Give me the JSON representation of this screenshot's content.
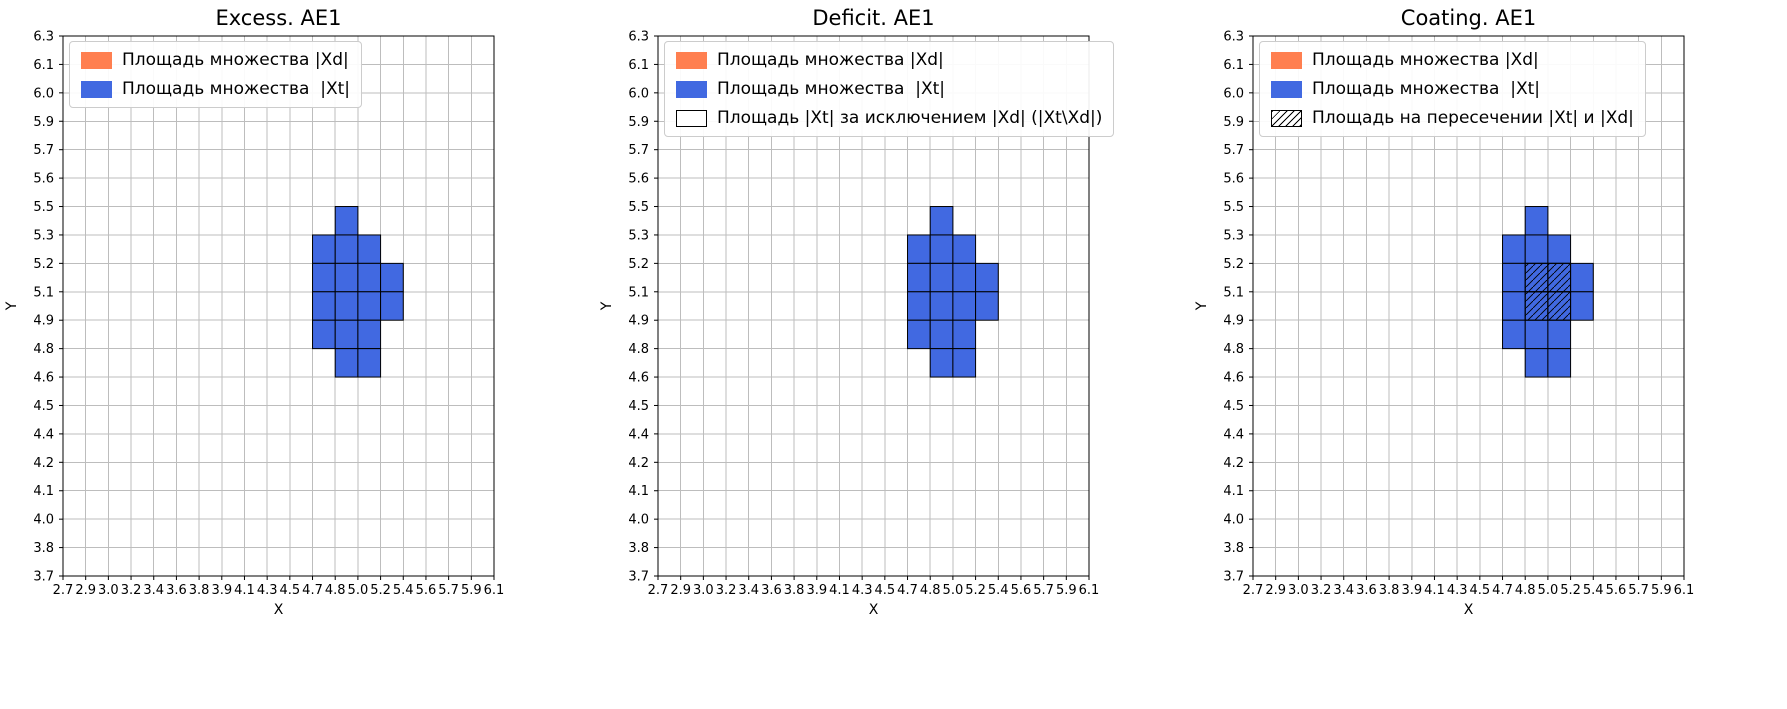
{
  "figure": {
    "background": "#ffffff"
  },
  "colors": {
    "xd_color": "#ff7f50",
    "xt_color": "#4169e1",
    "grid_color": "#bdbdbd",
    "spine_color": "#000000",
    "legend_border": "#cccccc",
    "hatch_color": "#000000"
  },
  "chart_data": [
    {
      "type": "heatmap",
      "title": "Excess. AE1",
      "xlabel": "X",
      "ylabel": "Y",
      "grid": true,
      "legend_position": "upper left",
      "x_ticks": [
        "2.7",
        "2.9",
        "3.0",
        "3.2",
        "3.4",
        "3.6",
        "3.8",
        "3.9",
        "4.1",
        "4.3",
        "4.5",
        "4.7",
        "4.8",
        "5.0",
        "5.2",
        "5.4",
        "5.6",
        "5.7",
        "5.9",
        "6.1"
      ],
      "y_ticks": [
        "3.7",
        "3.8",
        "4.0",
        "4.1",
        "4.2",
        "4.4",
        "4.5",
        "4.6",
        "4.8",
        "4.9",
        "5.1",
        "5.2",
        "5.3",
        "5.5",
        "5.6",
        "5.7",
        "5.9",
        "6.0",
        "6.1",
        "6.3"
      ],
      "legend": [
        {
          "label": "Площадь множества |Xd|",
          "swatch": "solid",
          "color": "#ff7f50"
        },
        {
          "label": "Площадь множества  |Xt|",
          "swatch": "solid",
          "color": "#4169e1"
        }
      ],
      "cell_fill": "#4169e1",
      "cells_encoding": "grid cell [column,row] indices into tick intervals, row 0 at bottom",
      "filled_cells": [
        [
          12,
          12
        ],
        [
          11,
          11
        ],
        [
          12,
          11
        ],
        [
          13,
          11
        ],
        [
          11,
          10
        ],
        [
          12,
          10
        ],
        [
          13,
          10
        ],
        [
          14,
          10
        ],
        [
          11,
          9
        ],
        [
          12,
          9
        ],
        [
          13,
          9
        ],
        [
          14,
          9
        ],
        [
          11,
          8
        ],
        [
          12,
          8
        ],
        [
          13,
          8
        ],
        [
          12,
          7
        ],
        [
          13,
          7
        ]
      ],
      "hatched_cells": []
    },
    {
      "type": "heatmap",
      "title": "Deficit. AE1",
      "xlabel": "X",
      "ylabel": "Y",
      "grid": true,
      "legend_position": "upper left",
      "x_ticks": [
        "2.7",
        "2.9",
        "3.0",
        "3.2",
        "3.4",
        "3.6",
        "3.8",
        "3.9",
        "4.1",
        "4.3",
        "4.5",
        "4.7",
        "4.8",
        "5.0",
        "5.2",
        "5.4",
        "5.6",
        "5.7",
        "5.9",
        "6.1"
      ],
      "y_ticks": [
        "3.7",
        "3.8",
        "4.0",
        "4.1",
        "4.2",
        "4.4",
        "4.5",
        "4.6",
        "4.8",
        "4.9",
        "5.1",
        "5.2",
        "5.3",
        "5.5",
        "5.6",
        "5.7",
        "5.9",
        "6.0",
        "6.1",
        "6.3"
      ],
      "legend": [
        {
          "label": "Площадь множества |Xd|",
          "swatch": "solid",
          "color": "#ff7f50"
        },
        {
          "label": "Площадь множества  |Xt|",
          "swatch": "solid",
          "color": "#4169e1"
        },
        {
          "label": "Площадь |Xt| за исключением |Xd| (|Xt\\Xd|)",
          "swatch": "outline",
          "color": "#ffffff"
        }
      ],
      "cell_fill": "#4169e1",
      "cells_encoding": "grid cell [column,row] indices into tick intervals, row 0 at bottom",
      "filled_cells": [
        [
          12,
          12
        ],
        [
          11,
          11
        ],
        [
          12,
          11
        ],
        [
          13,
          11
        ],
        [
          11,
          10
        ],
        [
          12,
          10
        ],
        [
          13,
          10
        ],
        [
          14,
          10
        ],
        [
          11,
          9
        ],
        [
          12,
          9
        ],
        [
          13,
          9
        ],
        [
          14,
          9
        ],
        [
          11,
          8
        ],
        [
          12,
          8
        ],
        [
          13,
          8
        ],
        [
          12,
          7
        ],
        [
          13,
          7
        ]
      ],
      "hatched_cells": []
    },
    {
      "type": "heatmap",
      "title": "Coating. AE1",
      "xlabel": "X",
      "ylabel": "Y",
      "grid": true,
      "legend_position": "upper left",
      "x_ticks": [
        "2.7",
        "2.9",
        "3.0",
        "3.2",
        "3.4",
        "3.6",
        "3.8",
        "3.9",
        "4.1",
        "4.3",
        "4.5",
        "4.7",
        "4.8",
        "5.0",
        "5.2",
        "5.4",
        "5.6",
        "5.7",
        "5.9",
        "6.1"
      ],
      "y_ticks": [
        "3.7",
        "3.8",
        "4.0",
        "4.1",
        "4.2",
        "4.4",
        "4.5",
        "4.6",
        "4.8",
        "4.9",
        "5.1",
        "5.2",
        "5.3",
        "5.5",
        "5.6",
        "5.7",
        "5.9",
        "6.0",
        "6.1",
        "6.3"
      ],
      "legend": [
        {
          "label": "Площадь множества |Xd|",
          "swatch": "solid",
          "color": "#ff7f50"
        },
        {
          "label": "Площадь множества  |Xt|",
          "swatch": "solid",
          "color": "#4169e1"
        },
        {
          "label": "Площадь на пересечении |Xt| и |Xd|",
          "swatch": "hatch",
          "color": "#ffffff"
        }
      ],
      "cell_fill": "#4169e1",
      "cells_encoding": "grid cell [column,row] indices into tick intervals, row 0 at bottom",
      "filled_cells": [
        [
          12,
          12
        ],
        [
          11,
          11
        ],
        [
          12,
          11
        ],
        [
          13,
          11
        ],
        [
          11,
          10
        ],
        [
          12,
          10
        ],
        [
          13,
          10
        ],
        [
          14,
          10
        ],
        [
          11,
          9
        ],
        [
          12,
          9
        ],
        [
          13,
          9
        ],
        [
          14,
          9
        ],
        [
          11,
          8
        ],
        [
          12,
          8
        ],
        [
          13,
          8
        ],
        [
          12,
          7
        ],
        [
          13,
          7
        ]
      ],
      "hatched_cells": [
        [
          12,
          10
        ],
        [
          13,
          10
        ],
        [
          12,
          9
        ],
        [
          13,
          9
        ]
      ]
    }
  ]
}
